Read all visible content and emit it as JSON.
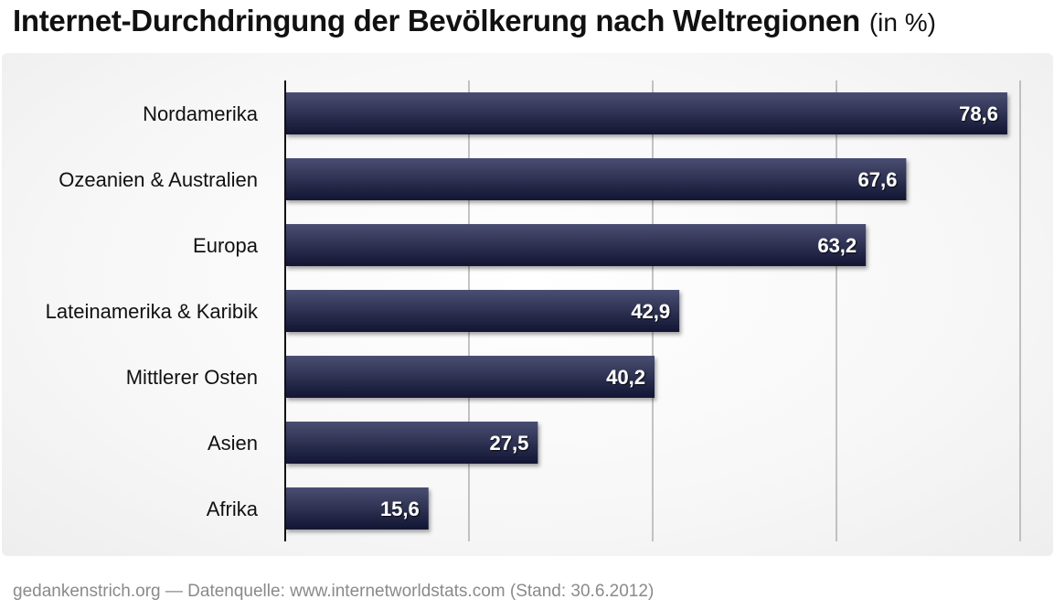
{
  "header": {
    "title": "Internet-Durchdringung der Bevölkerung nach Weltregionen",
    "subtitle": "(in %)"
  },
  "footer": {
    "source": "gedankenstrich.org — Datenquelle: www.internetworldstats.com (Stand: 30.6.2012)"
  },
  "colors": {
    "bar_top": "#4a4e72",
    "bar_bottom": "#121533",
    "grid": "#b0b0b0",
    "axis": "#111111",
    "label_text": "#111111",
    "value_text": "#ffffff"
  },
  "chart_data": {
    "type": "bar",
    "orientation": "horizontal",
    "title": "Internet-Durchdringung der Bevölkerung nach Weltregionen",
    "subtitle": "(in %)",
    "categories": [
      "Nordamerika",
      "Ozeanien & Australien",
      "Europa",
      "Lateinamerika & Karibik",
      "Mittlerer Osten",
      "Asien",
      "Afrika"
    ],
    "values": [
      78.6,
      67.6,
      63.2,
      42.9,
      40.2,
      27.5,
      15.6
    ],
    "value_labels": [
      "78,6",
      "67,6",
      "63,2",
      "42,9",
      "40,2",
      "27,5",
      "15,6"
    ],
    "xlim": [
      0,
      80
    ],
    "grid_values": [
      20,
      40,
      60,
      80
    ],
    "grid": true,
    "xlabel": "",
    "ylabel": ""
  }
}
